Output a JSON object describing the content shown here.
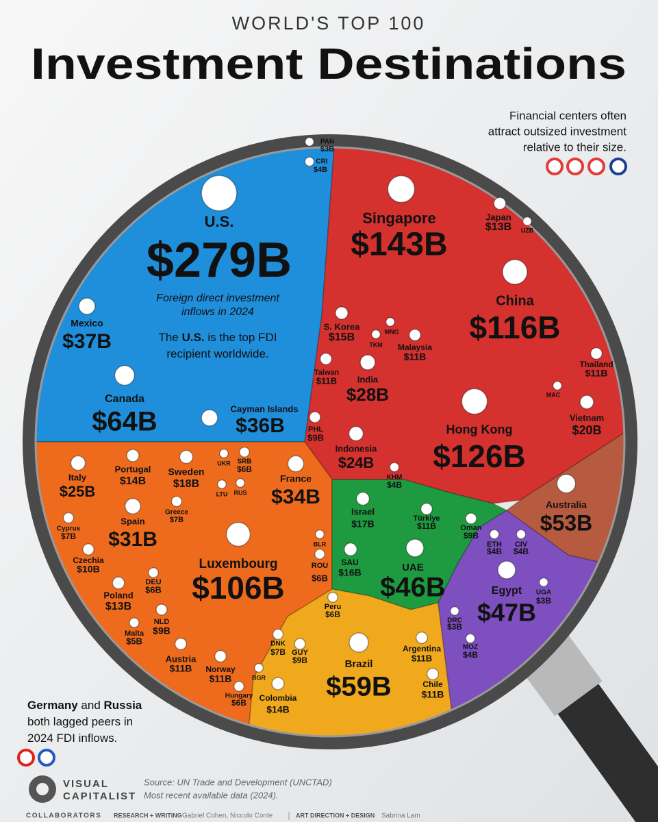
{
  "chart_data": {
    "type": "treemap",
    "supertitle": "WORLD'S TOP 100",
    "title": "Investment Destinations",
    "series": [
      {
        "color": "#1f8fdc",
        "categories": [
          "U.S.",
          "Mexico",
          "Canada",
          "Cayman Islands",
          "PAN",
          "CRI"
        ],
        "values": [
          279,
          37,
          64,
          36,
          3,
          4
        ],
        "value_labels": [
          "$279B",
          "$37B",
          "$64B",
          "$36B",
          "$3B",
          "$4B"
        ]
      },
      {
        "color": "#d5312e",
        "categories": [
          "Singapore",
          "Japan",
          "China",
          "S. Korea",
          "Malaysia",
          "Taiwan",
          "India",
          "Thailand",
          "Vietnam",
          "Hong Kong",
          "Indonesia",
          "PHL",
          "KHM",
          "UZB",
          "TKM",
          "MNG",
          "MAC"
        ],
        "values": [
          143,
          13,
          116,
          15,
          11,
          11,
          28,
          11,
          20,
          126,
          24,
          9,
          4,
          3,
          3,
          3,
          3
        ],
        "value_labels": [
          "$143B",
          "$13B",
          "$116B",
          "$15B",
          "$11B",
          "$11B",
          "$28B",
          "$11B",
          "$20B",
          "$126B",
          "$24B",
          "$9B",
          "$4B",
          null,
          null,
          null,
          null
        ]
      },
      {
        "color": "#ee6b1e",
        "categories": [
          "Italy",
          "Portugal",
          "Sweden",
          "France",
          "Spain",
          "Greece",
          "Cyprus",
          "Czechia",
          "Luxembourg",
          "DEU",
          "ROU",
          "Poland",
          "NLD",
          "Malta",
          "Austria",
          "DNK",
          "Norway",
          "Hungary",
          "SRB",
          "UKR",
          "LTU",
          "RUS",
          "BLR",
          "BGR"
        ],
        "values": [
          25,
          14,
          18,
          34,
          31,
          7,
          7,
          10,
          106,
          6,
          6,
          13,
          9,
          5,
          11,
          7,
          11,
          6,
          6,
          3,
          3,
          3,
          3,
          3
        ],
        "value_labels": [
          "$25B",
          "$14B",
          "$18B",
          "$34B",
          "$31B",
          "$7B",
          "$7B",
          "$10B",
          "$106B",
          "$6B",
          "$6B",
          "$13B",
          "$9B",
          "$5B",
          "$11B",
          "$7B",
          "$11B",
          "$6B",
          "$6B",
          null,
          null,
          null,
          null,
          null
        ]
      },
      {
        "color": "#1e9a40",
        "categories": [
          "Israel",
          "Türkiye",
          "Oman",
          "SAU",
          "UAE"
        ],
        "values": [
          17,
          11,
          9,
          16,
          46
        ],
        "value_labels": [
          "$17B",
          "$11B",
          "$9B",
          "$16B",
          "$46B"
        ]
      },
      {
        "color": "#f0a81d",
        "categories": [
          "Peru",
          "GUY",
          "Brazil",
          "Argentina",
          "Chile",
          "Colombia"
        ],
        "values": [
          6,
          9,
          59,
          11,
          11,
          14
        ],
        "value_labels": [
          "$6B",
          "$9B",
          "$59B",
          "$11B",
          "$11B",
          "$14B"
        ]
      },
      {
        "color": "#7d4fbf",
        "categories": [
          "ETH",
          "CIV",
          "Egypt",
          "UGA",
          "DRC",
          "MOZ"
        ],
        "values": [
          4,
          4,
          47,
          3,
          3,
          4
        ],
        "value_labels": [
          "$4B",
          "$4B",
          "$47B",
          "$3B",
          "$3B",
          "$4B"
        ]
      },
      {
        "color": "#b65b40",
        "categories": [
          "Australia"
        ],
        "values": [
          53
        ],
        "value_labels": [
          "$53B"
        ]
      }
    ],
    "us_note": [
      "Foreign direct investment",
      "inflows in 2024"
    ],
    "us_callout": [
      [
        {
          "text": "The "
        },
        {
          "text": "U.S.",
          "bold": true
        },
        {
          "text": " is the top FDI"
        }
      ],
      [
        {
          "text": "recipient worldwide."
        }
      ]
    ],
    "financial_note": [
      "Financial centers often",
      "attract outsized investment",
      "relative to their size."
    ],
    "lagged_note": [
      [
        {
          "text": "Germany",
          "bold": true
        },
        {
          "text": " and "
        },
        {
          "text": "Russia",
          "bold": true
        }
      ],
      [
        {
          "text": "both lagged peers in"
        }
      ],
      [
        {
          "text": "2024 FDI inflows."
        }
      ]
    ],
    "brand": [
      "VISUAL",
      "CAPITALIST"
    ],
    "source": [
      "Source: UN Trade and Development (UNCTAD)",
      "Most recent available data (2024)."
    ],
    "credits": {
      "label": "COLLABORATORS",
      "research_role": "RESEARCH + WRITING",
      "research_names": "Gabriel Cohen, Niccolo Conte",
      "design_role": "ART DIRECTION + DESIGN",
      "design_names": "Sabrina Lam"
    }
  }
}
